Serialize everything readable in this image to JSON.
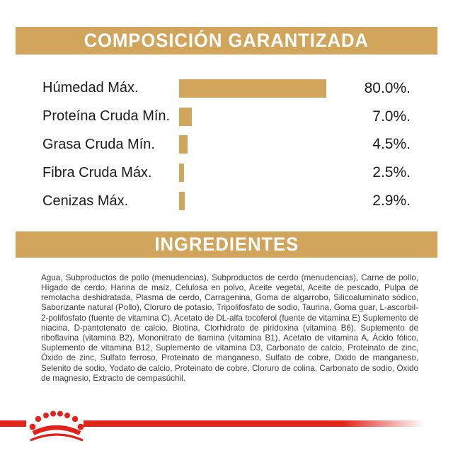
{
  "page": {
    "background": "#ffffff",
    "accent_tan": "#D2A55C",
    "brand_red": "#E2231A",
    "label_text_color": "#1c1c1c",
    "body_text_color": "#3d3d3d"
  },
  "composition": {
    "title": "COMPOSICIÓN GARANTIZADA",
    "rows": [
      {
        "label": "Húmedad Máx.",
        "value_label": "80.0%.",
        "percent": 80.0
      },
      {
        "label": "Proteína Cruda Mín.",
        "value_label": "7.0%.",
        "percent": 7.0
      },
      {
        "label": "Grasa Cruda Mín.",
        "value_label": "4.5%.",
        "percent": 4.5
      },
      {
        "label": "Fibra Cruda Máx.",
        "value_label": "2.5%.",
        "percent": 2.5
      },
      {
        "label": "Cenizas Máx.",
        "value_label": "2.9%.",
        "percent": 2.9
      }
    ]
  },
  "ingredients": {
    "title": "INGREDIENTES",
    "text": "Agua, Subproductos de pollo (menudencias), Subproductos de cerdo (menudencias), Carne de pollo, Hígado de cerdo, Harina de maíz, Celulosa en polvo, Aceite vegetal, Aceite de pescado, Pulpa de remolacha deshidratada, Plasma de cerdo, Carragenina, Goma de algarrobo, Silicoaluminato sódico, Saborizante natural (Pollo), Cloruro de potasio, Tripolifosfato de sodio, Taurina, Goma guar, L-ascorbil-2-polifosfato (fuente de vitamina C), Acetato de DL-alfa tocoferol (fuente de vitamina E) Suplemento de niacina, D-pantotenato de calcio, Biotina, Clorhidrato de piridoxina (vitamina B6), Suplemento de riboflavina (vitamina B2), Mononitrato de tiamina (vitamina B1), Acetato de vitamina A, Ácido fólico, Suplemento de vitamina B12, Suplemento de vitamina D3, Carbonato de calcio, Proteinato de zinc, Óxido de zinc, Sulfato ferroso, Proteinato de manganeso, Sulfato de cobre, Oxido de manganeso, Selenito de sodio, Yodato de calcio, Proteinato de cobre, Cloruro de colina, Carbonato de sodio, Oxido de magnesio, Extracto de cempasúchil."
  },
  "brand": {
    "logo_icon": "royal-canin-crown-icon",
    "color": "#E2231A"
  },
  "chart_data": {
    "type": "bar",
    "orientation": "horizontal",
    "title": "COMPOSICIÓN GARANTIZADA",
    "categories": [
      "Húmedad Máx.",
      "Proteína Cruda Mín.",
      "Grasa Cruda Mín.",
      "Fibra Cruda Máx.",
      "Cenizas Máx."
    ],
    "values": [
      80.0,
      7.0,
      4.5,
      2.5,
      2.9
    ],
    "value_labels": [
      "80.0%.",
      "7.0%.",
      "4.5%.",
      "2.5%.",
      "2.9%."
    ],
    "xlim": [
      0,
      100
    ],
    "bar_color": "#D2A55C",
    "grid": false,
    "legend": false
  }
}
